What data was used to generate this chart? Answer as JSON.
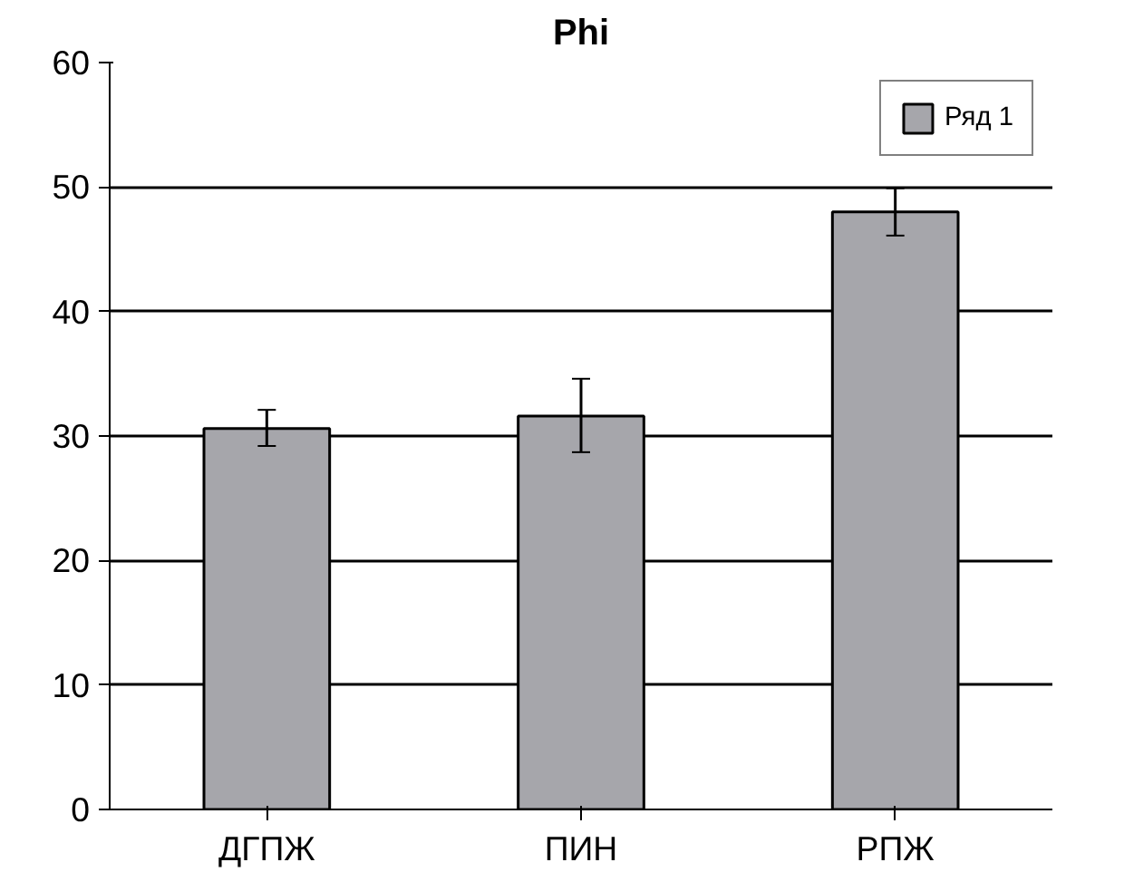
{
  "chart_data": {
    "type": "bar",
    "title": "Phi",
    "categories": [
      "ДГПЖ",
      "ПИН",
      "РПЖ"
    ],
    "series": [
      {
        "name": "Ряд 1",
        "color": "#a6a6ab",
        "values": [
          30.6,
          31.6,
          48.0
        ],
        "errors": [
          [
            29.2,
            32.1
          ],
          [
            28.7,
            34.6
          ],
          [
            46.1,
            49.9
          ]
        ]
      }
    ],
    "ylim": [
      0,
      60
    ],
    "yticks": [
      0,
      10,
      20,
      30,
      40,
      50,
      60
    ],
    "grid": "y",
    "legend": "top right"
  }
}
